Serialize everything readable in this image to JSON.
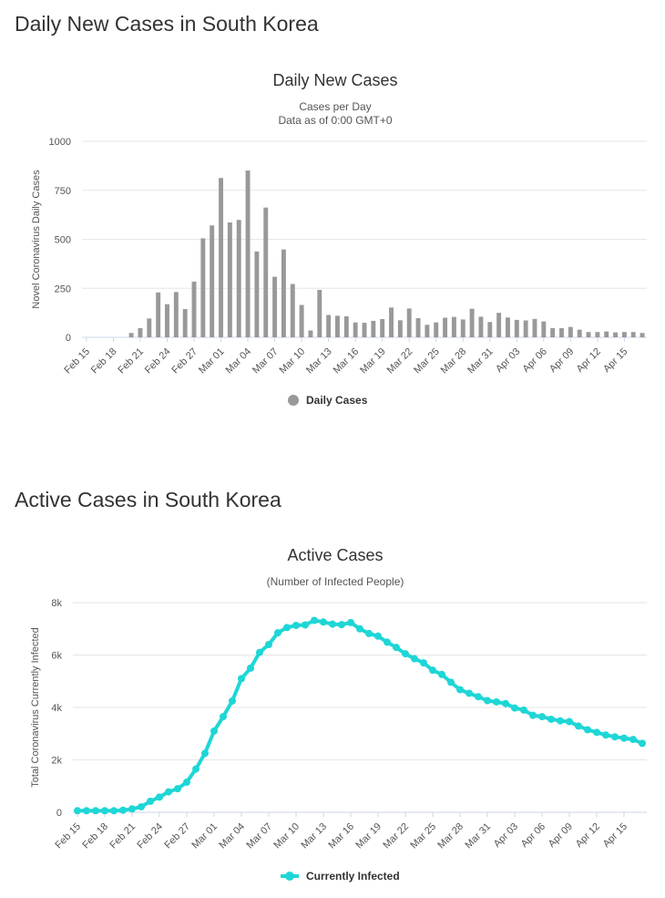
{
  "sections": [
    {
      "heading": "Daily New Cases in South Korea"
    },
    {
      "heading": "Active Cases in South Korea"
    }
  ],
  "chart_data": [
    {
      "type": "bar",
      "title": "Daily New Cases",
      "subtitle": [
        "Cases per Day",
        "Data as of 0:00 GMT+0"
      ],
      "ylabel": "Novel Coronavirus Daily Cases",
      "xlabel": "",
      "ylim": [
        0,
        1000
      ],
      "yticks": [
        "0",
        "250",
        "500",
        "750",
        "1000"
      ],
      "ytick_values": [
        0,
        250,
        500,
        750,
        1000
      ],
      "xtick_labels": [
        "Feb 15",
        "Feb 18",
        "Feb 21",
        "Feb 24",
        "Feb 27",
        "Mar 01",
        "Mar 04",
        "Mar 07",
        "Mar 10",
        "Mar 13",
        "Mar 16",
        "Mar 19",
        "Mar 22",
        "Mar 25",
        "Mar 28",
        "Mar 31",
        "Apr 03",
        "Apr 06",
        "Apr 09",
        "Apr 12",
        "Apr 15"
      ],
      "grid": true,
      "legend_position": "bottom",
      "color": "#999999",
      "series": [
        {
          "name": "Daily Cases",
          "values": [
            0,
            0,
            0,
            0,
            0,
            22,
            47,
            96,
            229,
            169,
            231,
            144,
            284,
            505,
            571,
            813,
            586,
            599,
            851,
            438,
            662,
            309,
            448,
            272,
            165,
            35,
            242,
            114,
            110,
            107,
            76,
            74,
            84,
            93,
            152,
            87,
            147,
            98,
            64,
            76,
            100,
            104,
            91,
            146,
            105,
            78,
            125,
            101,
            89,
            86,
            94,
            81,
            47,
            47,
            53,
            39,
            27,
            27,
            30,
            25,
            27,
            27,
            22
          ]
        }
      ]
    },
    {
      "type": "line",
      "title": "Active Cases",
      "subtitle": [
        "(Number of Infected People)"
      ],
      "ylabel": "Total Coronavirus Currently Infected",
      "xlabel": "",
      "ylim": [
        0,
        8000
      ],
      "yticks": [
        "0",
        "2k",
        "4k",
        "6k",
        "8k"
      ],
      "ytick_values": [
        0,
        2000,
        4000,
        6000,
        8000
      ],
      "xtick_labels": [
        "Feb 15",
        "Feb 18",
        "Feb 21",
        "Feb 24",
        "Feb 27",
        "Mar 01",
        "Mar 04",
        "Mar 07",
        "Mar 10",
        "Mar 13",
        "Mar 16",
        "Mar 19",
        "Mar 22",
        "Mar 25",
        "Mar 28",
        "Mar 31",
        "Apr 03",
        "Apr 06",
        "Apr 09",
        "Apr 12",
        "Apr 15"
      ],
      "grid": true,
      "legend_position": "bottom",
      "color": "#1fd6d6",
      "series": [
        {
          "name": "Currently Infected",
          "values": [
            60,
            60,
            60,
            60,
            60,
            80,
            130,
            210,
            420,
            580,
            780,
            900,
            1150,
            1650,
            2250,
            3100,
            3650,
            4250,
            5100,
            5500,
            6100,
            6400,
            6850,
            7050,
            7130,
            7150,
            7320,
            7260,
            7180,
            7160,
            7240,
            7000,
            6820,
            6720,
            6490,
            6290,
            6050,
            5860,
            5700,
            5420,
            5260,
            4960,
            4680,
            4540,
            4410,
            4260,
            4210,
            4150,
            3980,
            3900,
            3700,
            3650,
            3550,
            3490,
            3460,
            3290,
            3150,
            3050,
            2950,
            2880,
            2830,
            2780,
            2630
          ]
        }
      ]
    }
  ]
}
